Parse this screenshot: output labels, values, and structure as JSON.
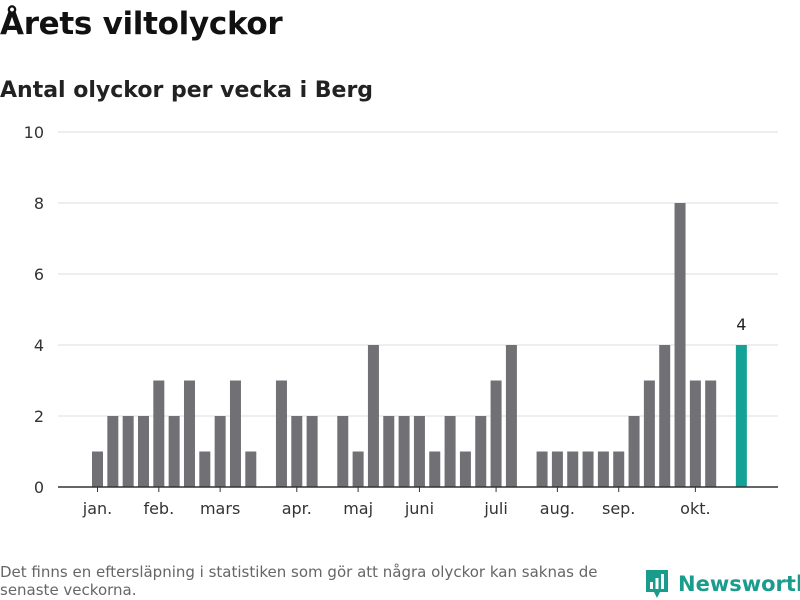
{
  "header": {
    "title": "Årets viltolyckor",
    "subtitle": "Antal olyckor per vecka i Berg"
  },
  "footer": {
    "note": "Det finns en eftersläpning i statistiken som gör att några olyckor kan saknas de senaste veckorna.",
    "brand": "Newsworthy",
    "brand_icon": "newsworthy-logo-icon"
  },
  "colors": {
    "bar": "#717075",
    "highlight": "#14a196",
    "grid": "#dddddd",
    "axis": "#333333",
    "brand": "#1a9c8c"
  },
  "chart_data": {
    "type": "bar",
    "title": "Årets viltolyckor",
    "subtitle": "Antal olyckor per vecka i Berg",
    "xlabel": "",
    "ylabel": "",
    "ylim": [
      0,
      10
    ],
    "yticks": [
      0,
      2,
      4,
      6,
      8,
      10
    ],
    "grid": true,
    "x": [
      1,
      2,
      3,
      4,
      5,
      6,
      7,
      8,
      9,
      10,
      11,
      12,
      13,
      14,
      15,
      16,
      17,
      18,
      19,
      20,
      21,
      22,
      23,
      24,
      25,
      26,
      27,
      28,
      29,
      30,
      31,
      32,
      33,
      34,
      35,
      36,
      37,
      38,
      39,
      40,
      41,
      42,
      43
    ],
    "values": [
      1,
      2,
      2,
      2,
      3,
      2,
      3,
      1,
      2,
      3,
      1,
      0,
      3,
      2,
      2,
      0,
      2,
      1,
      4,
      2,
      2,
      2,
      1,
      2,
      1,
      2,
      3,
      4,
      0,
      1,
      1,
      1,
      1,
      1,
      1,
      2,
      3,
      4,
      8,
      3,
      3,
      0,
      4
    ],
    "highlight_index": 42,
    "highlight_label": "4",
    "month_labels": [
      {
        "label": "jan.",
        "week": 1
      },
      {
        "label": "feb.",
        "week": 5
      },
      {
        "label": "mars",
        "week": 9
      },
      {
        "label": "apr.",
        "week": 14
      },
      {
        "label": "maj",
        "week": 18
      },
      {
        "label": "juni",
        "week": 22
      },
      {
        "label": "juli",
        "week": 27
      },
      {
        "label": "aug.",
        "week": 31
      },
      {
        "label": "sep.",
        "week": 35
      },
      {
        "label": "okt.",
        "week": 40
      }
    ]
  }
}
